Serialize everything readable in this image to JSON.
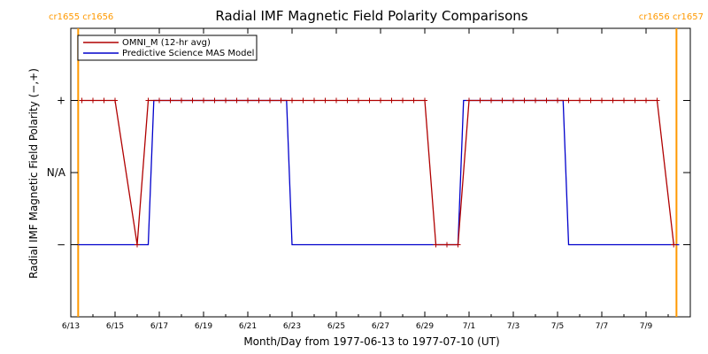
{
  "chart_data": {
    "type": "line",
    "title": "Radial IMF Magnetic Field Polarity Comparisons",
    "xlabel": "Month/Day from 1977-06-13 to 1977-07-10 (UT)",
    "ylabel": "Radial IMF Magnetic Field Polarity (−,+)",
    "xlim": [
      "1977-06-13",
      "1977-07-11"
    ],
    "x_ticks": [
      {
        "date": "1977-06-13",
        "label": "6/13"
      },
      {
        "date": "1977-06-15",
        "label": "6/15"
      },
      {
        "date": "1977-06-17",
        "label": "6/17"
      },
      {
        "date": "1977-06-19",
        "label": "6/19"
      },
      {
        "date": "1977-06-21",
        "label": "6/21"
      },
      {
        "date": "1977-06-23",
        "label": "6/23"
      },
      {
        "date": "1977-06-25",
        "label": "6/25"
      },
      {
        "date": "1977-06-27",
        "label": "6/27"
      },
      {
        "date": "1977-06-29",
        "label": "6/29"
      },
      {
        "date": "1977-07-01",
        "label": "7/1"
      },
      {
        "date": "1977-07-03",
        "label": "7/3"
      },
      {
        "date": "1977-07-05",
        "label": "7/5"
      },
      {
        "date": "1977-07-07",
        "label": "7/7"
      },
      {
        "date": "1977-07-09",
        "label": "7/9"
      }
    ],
    "y_ticks": [
      {
        "value": 1,
        "label": "+"
      },
      {
        "value": 0,
        "label": "N/A"
      },
      {
        "value": -1,
        "label": "−"
      }
    ],
    "ylim": [
      -2,
      2
    ],
    "legend": {
      "placement": "top-left",
      "entries": [
        {
          "name": "OMNI_M (12-hr avg)",
          "color": "#b00000"
        },
        {
          "name": "Predictive Science MAS Model",
          "color": "#0000cc"
        }
      ]
    },
    "carrington_markers": [
      {
        "date": "1977-06-13 08:00",
        "label": "cr1655 cr1656",
        "position": "left"
      },
      {
        "date": "1977-07-10 09:00",
        "label": "cr1656 cr1657",
        "position": "right"
      }
    ],
    "marker_color": "#ff9900",
    "series": [
      {
        "name": "OMNI_M (12-hr avg)",
        "color": "#b00000",
        "marker": "+",
        "points": [
          [
            "1977-06-13 12:00",
            1
          ],
          [
            "1977-06-14 00:00",
            1
          ],
          [
            "1977-06-14 12:00",
            1
          ],
          [
            "1977-06-15 00:00",
            1
          ],
          [
            "1977-06-16 00:00",
            -1
          ],
          [
            "1977-06-16 12:00",
            1
          ],
          [
            "1977-06-17 00:00",
            1
          ],
          [
            "1977-06-17 12:00",
            1
          ],
          [
            "1977-06-18 00:00",
            1
          ],
          [
            "1977-06-18 12:00",
            1
          ],
          [
            "1977-06-19 00:00",
            1
          ],
          [
            "1977-06-19 12:00",
            1
          ],
          [
            "1977-06-20 00:00",
            1
          ],
          [
            "1977-06-20 12:00",
            1
          ],
          [
            "1977-06-21 00:00",
            1
          ],
          [
            "1977-06-21 12:00",
            1
          ],
          [
            "1977-06-22 00:00",
            1
          ],
          [
            "1977-06-22 12:00",
            1
          ],
          [
            "1977-06-23 00:00",
            1
          ],
          [
            "1977-06-23 12:00",
            1
          ],
          [
            "1977-06-24 00:00",
            1
          ],
          [
            "1977-06-24 12:00",
            1
          ],
          [
            "1977-06-25 00:00",
            1
          ],
          [
            "1977-06-25 12:00",
            1
          ],
          [
            "1977-06-26 00:00",
            1
          ],
          [
            "1977-06-26 12:00",
            1
          ],
          [
            "1977-06-27 00:00",
            1
          ],
          [
            "1977-06-27 12:00",
            1
          ],
          [
            "1977-06-28 00:00",
            1
          ],
          [
            "1977-06-28 12:00",
            1
          ],
          [
            "1977-06-29 00:00",
            1
          ],
          [
            "1977-06-29 12:00",
            -1
          ],
          [
            "1977-06-30 00:00",
            -1
          ],
          [
            "1977-06-30 12:00",
            -1
          ],
          [
            "1977-07-01 00:00",
            1
          ],
          [
            "1977-07-01 12:00",
            1
          ],
          [
            "1977-07-02 00:00",
            1
          ],
          [
            "1977-07-02 12:00",
            1
          ],
          [
            "1977-07-03 00:00",
            1
          ],
          [
            "1977-07-03 12:00",
            1
          ],
          [
            "1977-07-04 00:00",
            1
          ],
          [
            "1977-07-04 12:00",
            1
          ],
          [
            "1977-07-05 00:00",
            1
          ],
          [
            "1977-07-05 12:00",
            1
          ],
          [
            "1977-07-06 00:00",
            1
          ],
          [
            "1977-07-06 12:00",
            1
          ],
          [
            "1977-07-07 00:00",
            1
          ],
          [
            "1977-07-07 12:00",
            1
          ],
          [
            "1977-07-08 00:00",
            1
          ],
          [
            "1977-07-08 12:00",
            1
          ],
          [
            "1977-07-09 00:00",
            1
          ],
          [
            "1977-07-09 12:00",
            1
          ],
          [
            "1977-07-10 06:00",
            -1
          ]
        ]
      },
      {
        "name": "Predictive Science MAS Model",
        "color": "#0000cc",
        "points": [
          [
            "1977-06-13 08:00",
            -1
          ],
          [
            "1977-06-16 12:00",
            -1
          ],
          [
            "1977-06-16 18:00",
            1
          ],
          [
            "1977-06-22 18:00",
            1
          ],
          [
            "1977-06-23 00:00",
            -1
          ],
          [
            "1977-06-30 12:00",
            -1
          ],
          [
            "1977-06-30 18:00",
            1
          ],
          [
            "1977-07-05 06:00",
            1
          ],
          [
            "1977-07-05 12:00",
            -1
          ],
          [
            "1977-07-10 12:00",
            -1
          ]
        ]
      }
    ]
  }
}
